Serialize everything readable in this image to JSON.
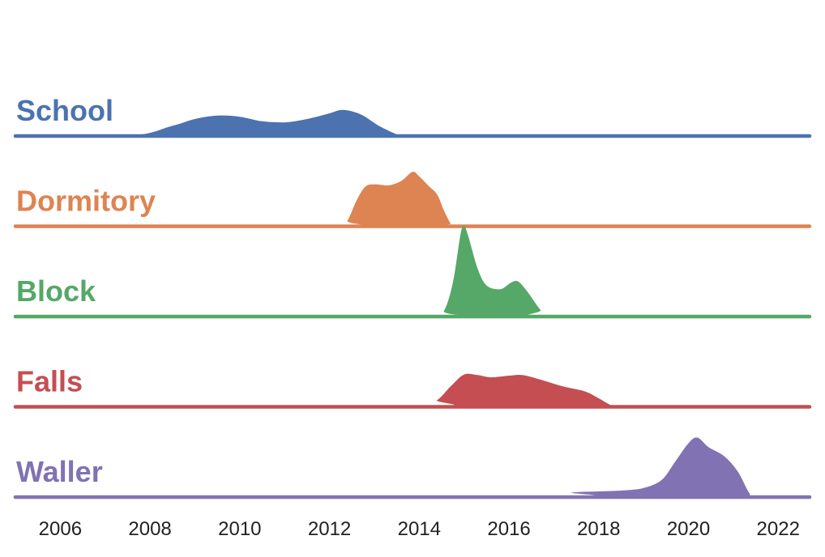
{
  "chart_data": {
    "type": "area",
    "subtype": "ridgeline",
    "title": "",
    "xlabel": "",
    "ylabel": "",
    "xlim": [
      2005,
      2022.7
    ],
    "xticks": [
      2006,
      2008,
      2010,
      2012,
      2014,
      2016,
      2018,
      2020,
      2022
    ],
    "grid": false,
    "legend": "none",
    "series": [
      {
        "name": "School",
        "color": "#4c72b0",
        "points": [
          [
            2005.0,
            0
          ],
          [
            2007.5,
            0
          ],
          [
            2008.5,
            0.18
          ],
          [
            2009.0,
            0.3
          ],
          [
            2009.5,
            0.36
          ],
          [
            2010.0,
            0.34
          ],
          [
            2010.5,
            0.26
          ],
          [
            2011.0,
            0.24
          ],
          [
            2011.5,
            0.3
          ],
          [
            2012.0,
            0.4
          ],
          [
            2012.3,
            0.46
          ],
          [
            2012.7,
            0.38
          ],
          [
            2013.1,
            0.18
          ],
          [
            2013.5,
            0.03
          ],
          [
            2013.7,
            0
          ],
          [
            2022.7,
            0
          ]
        ]
      },
      {
        "name": "Dormitory",
        "color": "#dd8452",
        "points": [
          [
            2005.0,
            0
          ],
          [
            2012.2,
            0
          ],
          [
            2012.4,
            0.1
          ],
          [
            2012.6,
            0.45
          ],
          [
            2012.8,
            0.7
          ],
          [
            2013.0,
            0.74
          ],
          [
            2013.3,
            0.72
          ],
          [
            2013.6,
            0.8
          ],
          [
            2013.85,
            0.96
          ],
          [
            2014.0,
            0.88
          ],
          [
            2014.2,
            0.72
          ],
          [
            2014.4,
            0.56
          ],
          [
            2014.55,
            0.28
          ],
          [
            2014.7,
            0.05
          ],
          [
            2014.8,
            0
          ],
          [
            2022.7,
            0
          ]
        ]
      },
      {
        "name": "Block",
        "color": "#55a868",
        "points": [
          [
            2005.0,
            0
          ],
          [
            2014.3,
            0
          ],
          [
            2014.55,
            0.1
          ],
          [
            2014.75,
            0.6
          ],
          [
            2014.92,
            1.45
          ],
          [
            2015.0,
            1.6
          ],
          [
            2015.1,
            1.4
          ],
          [
            2015.3,
            0.85
          ],
          [
            2015.5,
            0.55
          ],
          [
            2015.8,
            0.48
          ],
          [
            2016.05,
            0.6
          ],
          [
            2016.2,
            0.62
          ],
          [
            2016.4,
            0.45
          ],
          [
            2016.7,
            0.12
          ],
          [
            2016.9,
            0
          ],
          [
            2022.7,
            0
          ]
        ]
      },
      {
        "name": "Falls",
        "color": "#c44e52",
        "points": [
          [
            2005.0,
            0
          ],
          [
            2014.0,
            0
          ],
          [
            2014.4,
            0.12
          ],
          [
            2014.7,
            0.36
          ],
          [
            2015.0,
            0.57
          ],
          [
            2015.3,
            0.56
          ],
          [
            2015.6,
            0.52
          ],
          [
            2016.0,
            0.55
          ],
          [
            2016.3,
            0.56
          ],
          [
            2016.7,
            0.48
          ],
          [
            2017.2,
            0.36
          ],
          [
            2017.7,
            0.27
          ],
          [
            2018.0,
            0.15
          ],
          [
            2018.3,
            0.02
          ],
          [
            2018.5,
            0
          ],
          [
            2022.7,
            0
          ]
        ]
      },
      {
        "name": "Waller",
        "color": "#8172b3",
        "points": [
          [
            2005.0,
            0
          ],
          [
            2016.9,
            0
          ],
          [
            2017.4,
            0.08
          ],
          [
            2018.0,
            0.1
          ],
          [
            2018.6,
            0.12
          ],
          [
            2019.0,
            0.16
          ],
          [
            2019.4,
            0.3
          ],
          [
            2019.7,
            0.62
          ],
          [
            2020.0,
            0.95
          ],
          [
            2020.2,
            1.05
          ],
          [
            2020.45,
            0.88
          ],
          [
            2020.8,
            0.72
          ],
          [
            2021.1,
            0.45
          ],
          [
            2021.35,
            0.08
          ],
          [
            2021.5,
            0
          ],
          [
            2022.7,
            0
          ]
        ]
      }
    ]
  }
}
